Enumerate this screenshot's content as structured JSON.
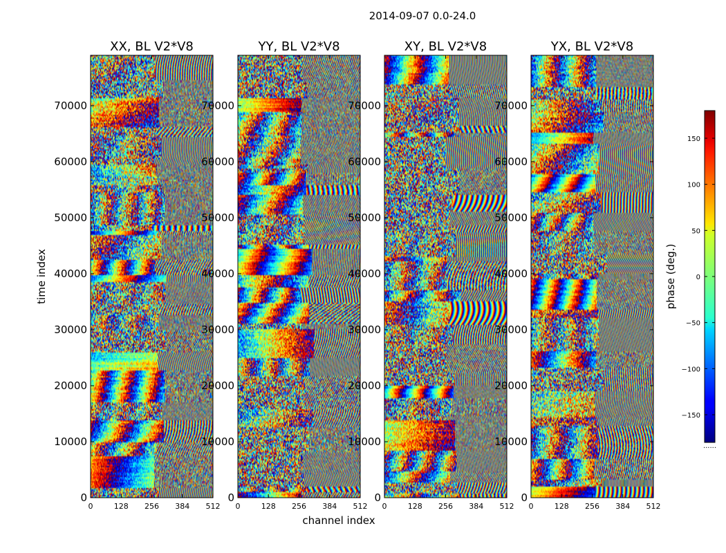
{
  "chart_data": {
    "type": "heatmap",
    "title": "2014-09-07 0.0-24.0",
    "xlabel": "channel index",
    "ylabel": "time index",
    "xlim": [
      0,
      512
    ],
    "ylim": [
      0,
      79000
    ],
    "x_ticks": [
      "0",
      "128",
      "256",
      "384",
      "512"
    ],
    "x_tick_values": [
      0,
      128,
      256,
      384,
      512
    ],
    "y_ticks": [
      "0",
      "10000",
      "20000",
      "30000",
      "40000",
      "50000",
      "60000",
      "70000"
    ],
    "y_tick_values": [
      0,
      10000,
      20000,
      30000,
      40000,
      50000,
      60000,
      70000
    ],
    "colormap": "jet",
    "colorbar": {
      "label": "phase (deg.)",
      "range": [
        -180,
        180
      ],
      "ticks": [
        "−150",
        "−100",
        "−50",
        "0",
        "50",
        "100",
        "150"
      ],
      "tick_values": [
        -150,
        -100,
        -50,
        0,
        50,
        100,
        150
      ],
      "footer": "......"
    },
    "panels": [
      {
        "title": "XX, BL V2*V8",
        "polarization": "XX",
        "baseline": "V2*V8",
        "value": "phase"
      },
      {
        "title": "YY, BL V2*V8",
        "polarization": "YY",
        "baseline": "V2*V8",
        "value": "phase"
      },
      {
        "title": "XY, BL V2*V8",
        "polarization": "XY",
        "baseline": "V2*V8",
        "value": "phase"
      },
      {
        "title": "YX, BL V2*V8",
        "polarization": "YX",
        "baseline": "V2*V8",
        "value": "phase"
      }
    ]
  }
}
